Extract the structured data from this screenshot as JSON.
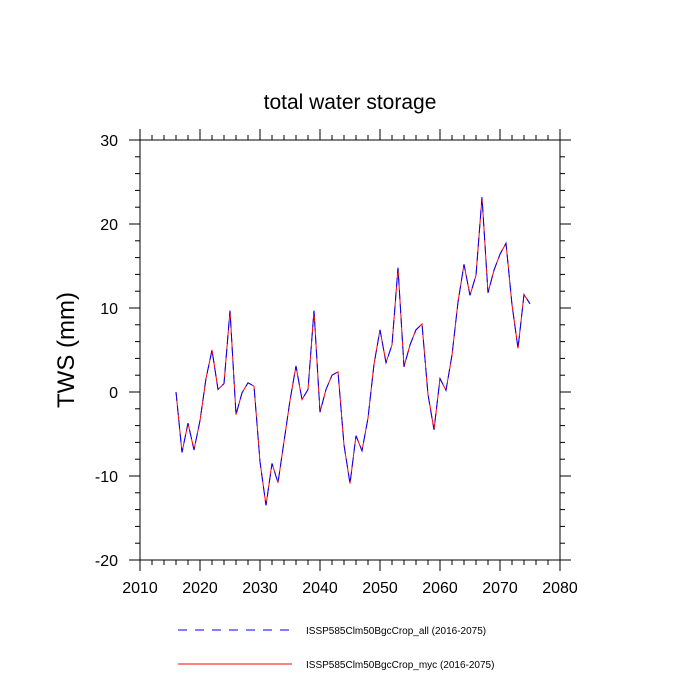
{
  "chart_data": {
    "type": "line",
    "title": "total water storage",
    "xlabel": "",
    "ylabel": "TWS (mm)",
    "xlim": [
      2010,
      2080
    ],
    "ylim": [
      -20,
      30
    ],
    "xticks": [
      2010,
      2020,
      2030,
      2040,
      2050,
      2060,
      2070,
      2080
    ],
    "xtick_labels": [
      "2010",
      "2020",
      "2030",
      "2040",
      "2050",
      "2060",
      "2070",
      "2080"
    ],
    "yticks": [
      -20,
      -10,
      0,
      10,
      20,
      30
    ],
    "ytick_labels": [
      "-20",
      "-10",
      "0",
      "10",
      "20",
      "30"
    ],
    "grid": false,
    "legend_position": "bottom",
    "x": [
      2016,
      2017,
      2018,
      2019,
      2020,
      2021,
      2022,
      2023,
      2024,
      2025,
      2026,
      2027,
      2028,
      2029,
      2030,
      2031,
      2032,
      2033,
      2034,
      2035,
      2036,
      2037,
      2038,
      2039,
      2040,
      2041,
      2042,
      2043,
      2044,
      2045,
      2046,
      2047,
      2048,
      2049,
      2050,
      2051,
      2052,
      2053,
      2054,
      2055,
      2056,
      2057,
      2058,
      2059,
      2060,
      2061,
      2062,
      2063,
      2064,
      2065,
      2066,
      2067,
      2068,
      2069,
      2070,
      2071,
      2072,
      2073,
      2074,
      2075
    ],
    "series": [
      {
        "name": "ISSP585Clm50BgcCrop_all (2016-2075)",
        "color": "#0000ff",
        "style": "dashed",
        "values": [
          0,
          -7.2,
          -3.7,
          -6.9,
          -3.4,
          1.6,
          5.0,
          0.3,
          1.0,
          9.7,
          -2.7,
          -0.1,
          1.1,
          0.7,
          -8.3,
          -13.5,
          -8.5,
          -10.8,
          -5.9,
          -1.0,
          3.1,
          -0.9,
          0.3,
          9.7,
          -2.4,
          0.3,
          2.0,
          2.4,
          -6.3,
          -10.9,
          -5.2,
          -7.0,
          -3.1,
          3.3,
          7.4,
          3.5,
          5.6,
          14.8,
          3.0,
          5.6,
          7.4,
          8.1,
          -0.3,
          -4.5,
          1.6,
          0.2,
          4.4,
          10.7,
          15.2,
          11.5,
          13.9,
          23.2,
          11.8,
          14.5,
          16.4,
          17.7,
          10.4,
          5.2,
          11.6,
          10.5
        ]
      },
      {
        "name": "ISSP585Clm50BgcCrop_myc (2016-2075)",
        "color": "#ff0000",
        "style": "solid",
        "values": [
          0,
          -7.2,
          -3.7,
          -6.9,
          -3.4,
          1.6,
          5.0,
          0.3,
          1.0,
          9.7,
          -2.7,
          -0.1,
          1.1,
          0.7,
          -8.3,
          -13.5,
          -8.5,
          -10.8,
          -5.9,
          -1.0,
          3.1,
          -0.9,
          0.3,
          9.7,
          -2.4,
          0.3,
          2.0,
          2.4,
          -6.3,
          -10.9,
          -5.2,
          -7.0,
          -3.1,
          3.3,
          7.4,
          3.5,
          5.6,
          14.8,
          3.0,
          5.6,
          7.4,
          8.1,
          -0.3,
          -4.5,
          1.6,
          0.2,
          4.4,
          10.7,
          15.2,
          11.5,
          13.9,
          23.2,
          11.8,
          14.5,
          16.4,
          17.7,
          10.4,
          5.2,
          11.6,
          10.5
        ]
      }
    ]
  }
}
